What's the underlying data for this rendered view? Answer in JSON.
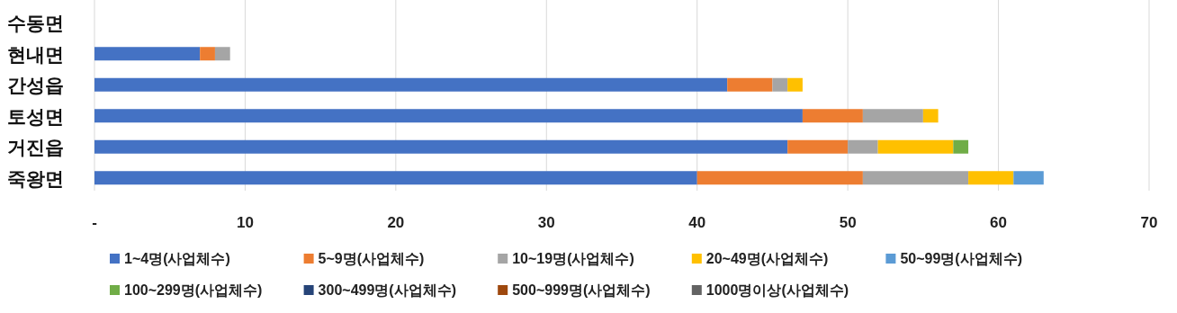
{
  "chart_data": {
    "type": "bar",
    "orientation": "horizontal",
    "stacked": true,
    "grid": "x",
    "legend": "bottom",
    "categories": [
      "수동면",
      "현내면",
      "간성읍",
      "토성면",
      "거진읍",
      "죽왕면"
    ],
    "xlim": [
      0,
      70
    ],
    "xticks": [
      {
        "value": 0,
        "label": "-"
      },
      10,
      20,
      30,
      40,
      50,
      60,
      70
    ],
    "series": [
      {
        "name": "1~4명(사업체수)",
        "color": "#4472c4",
        "values": [
          0,
          7,
          42,
          47,
          46,
          40
        ]
      },
      {
        "name": "5~9명(사업체수)",
        "color": "#ed7d31",
        "values": [
          0,
          1,
          3,
          4,
          4,
          11
        ]
      },
      {
        "name": "10~19명(사업체수)",
        "color": "#a5a5a5",
        "values": [
          0,
          1,
          1,
          4,
          2,
          7
        ]
      },
      {
        "name": "20~49명(사업체수)",
        "color": "#ffc000",
        "values": [
          0,
          0,
          1,
          1,
          5,
          3
        ]
      },
      {
        "name": "50~99명(사업체수)",
        "color": "#5b9bd5",
        "values": [
          0,
          0,
          0,
          0,
          0,
          2
        ]
      },
      {
        "name": "100~299명(사업체수)",
        "color": "#70ad47",
        "values": [
          0,
          0,
          0,
          0,
          1,
          0
        ]
      },
      {
        "name": "300~499명(사업체수)",
        "color": "#264478",
        "values": [
          0,
          0,
          0,
          0,
          0,
          0
        ]
      },
      {
        "name": "500~999명(사업체수)",
        "color": "#9e480e",
        "values": [
          0,
          0,
          0,
          0,
          0,
          0
        ]
      },
      {
        "name": "1000명이상(사업체수)",
        "color": "#636363",
        "values": [
          0,
          0,
          0,
          0,
          0,
          0
        ]
      }
    ]
  }
}
